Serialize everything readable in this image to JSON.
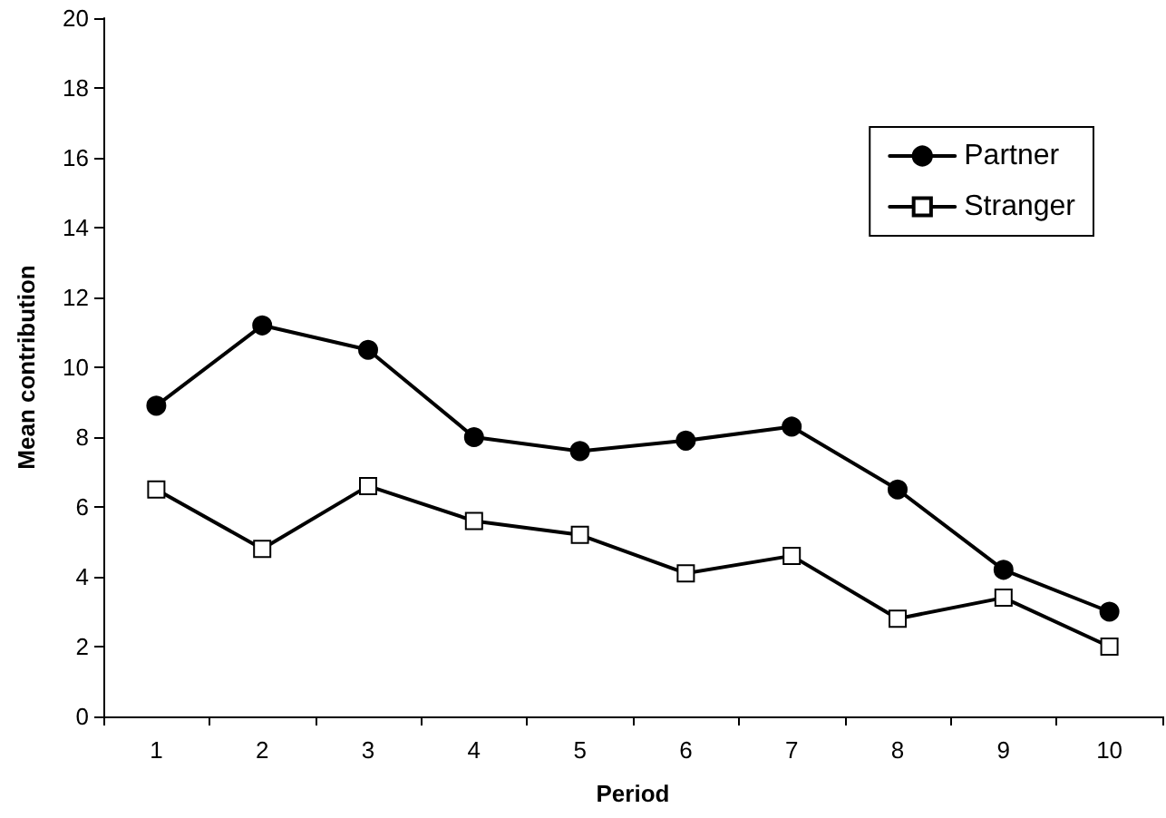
{
  "chart_data": {
    "type": "line",
    "xlabel": "Period",
    "ylabel": "Mean contribution",
    "categories": [
      "1",
      "2",
      "3",
      "4",
      "5",
      "6",
      "7",
      "8",
      "9",
      "10"
    ],
    "series": [
      {
        "name": "Partner",
        "color": "#000000",
        "marker": "circle",
        "values": [
          8.9,
          11.2,
          10.5,
          8.0,
          7.6,
          7.9,
          8.3,
          6.5,
          4.2,
          3.0
        ]
      },
      {
        "name": "Stranger",
        "color": "#000000",
        "marker": "square",
        "values": [
          6.5,
          4.8,
          6.6,
          5.6,
          5.2,
          4.1,
          4.6,
          2.8,
          3.4,
          2.0
        ]
      }
    ],
    "ylim": [
      0,
      20
    ],
    "yticks": [
      0,
      2,
      4,
      6,
      8,
      10,
      12,
      14,
      16,
      18,
      20
    ],
    "grid": false,
    "legend": "top right",
    "line_style": "solid"
  }
}
